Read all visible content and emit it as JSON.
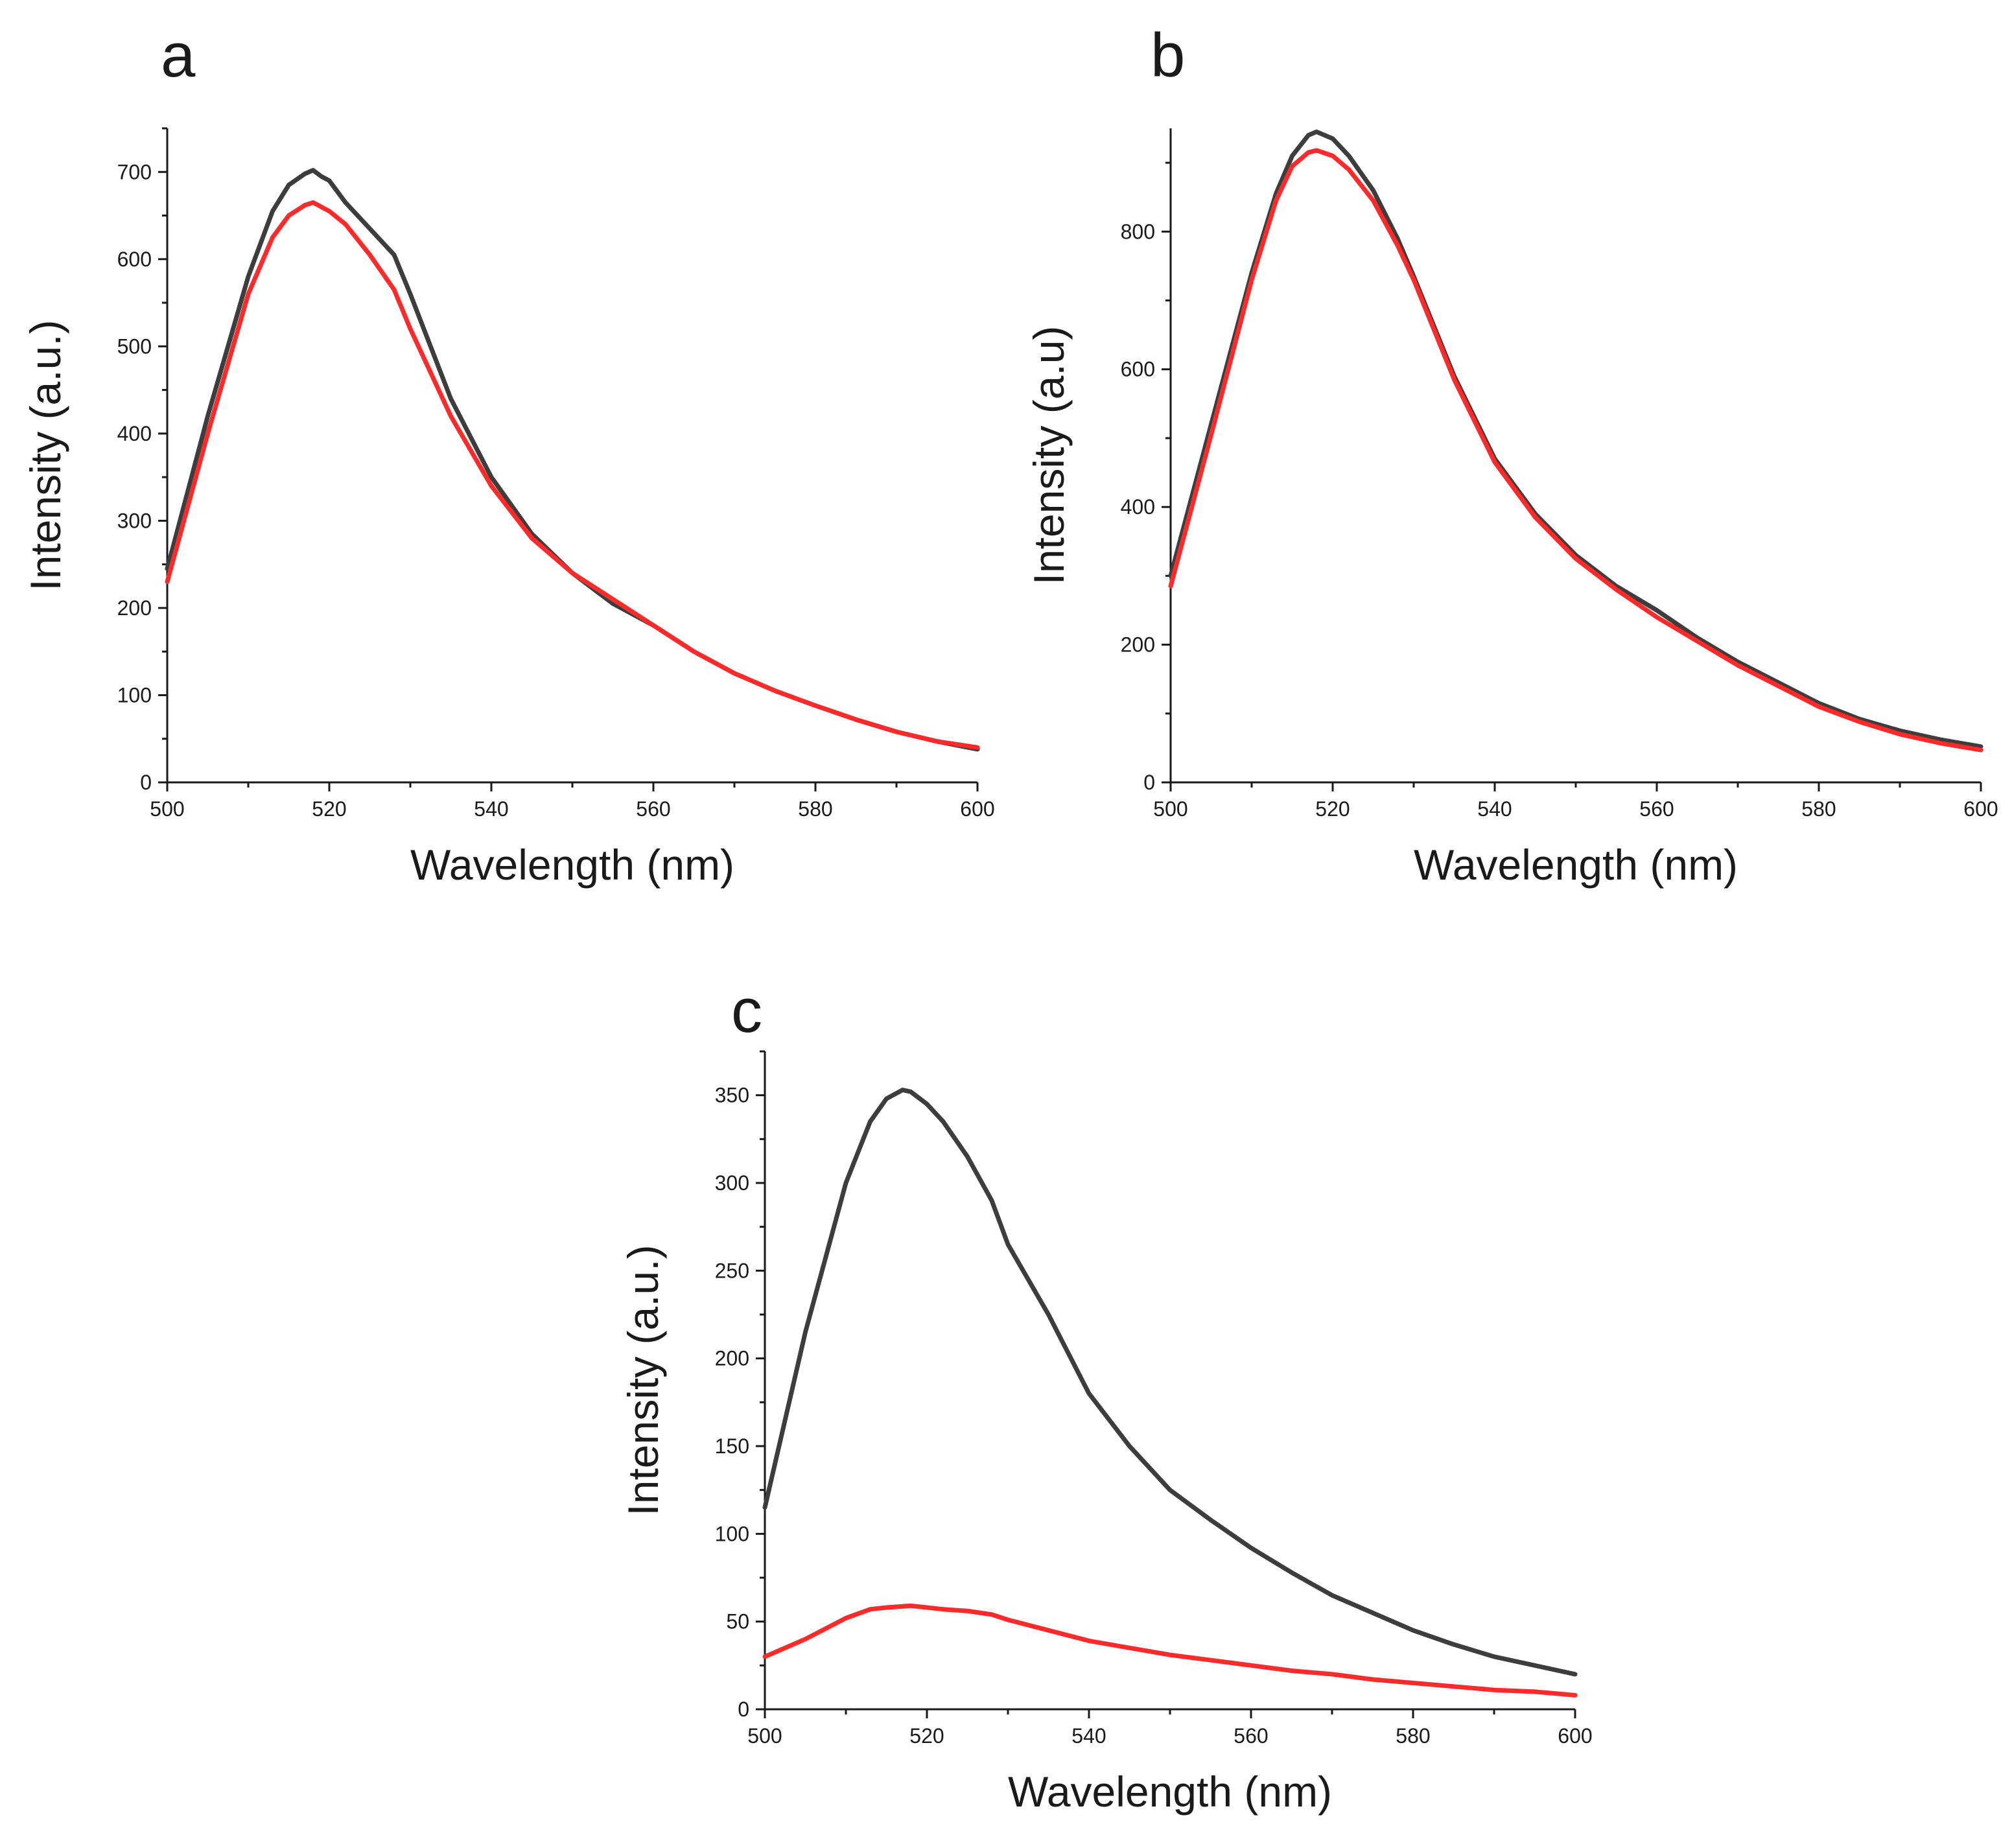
{
  "colors": {
    "series_dark": "#3d3d3d",
    "series_red": "#ff2a2a",
    "axis": "#1a1a1a"
  },
  "chart_data": [
    {
      "type": "line",
      "panel": "a",
      "xlabel": "Wavelength (nm)",
      "ylabel": "Intensity (a.u.)",
      "xlim": [
        500,
        600
      ],
      "ylim": [
        0,
        750
      ],
      "x_ticks": [
        500,
        520,
        540,
        560,
        580,
        600
      ],
      "x_tick_labels": [
        "500",
        "520",
        "540",
        "560",
        "580",
        "600"
      ],
      "y_ticks": [
        0,
        100,
        200,
        300,
        400,
        500,
        600,
        700
      ],
      "y_tick_labels": [
        "0",
        "100",
        "200",
        "300",
        "400",
        "500",
        "600",
        "700"
      ],
      "grid": false,
      "series": [
        {
          "name": "dark",
          "color": "#3d3d3d",
          "x": [
            500,
            505,
            510,
            513,
            515,
            517,
            518,
            519,
            520,
            522,
            525,
            528,
            530,
            535,
            540,
            545,
            550,
            555,
            560,
            565,
            570,
            575,
            580,
            585,
            590,
            595,
            600
          ],
          "y": [
            245,
            420,
            580,
            655,
            685,
            698,
            702,
            695,
            690,
            665,
            635,
            605,
            560,
            440,
            350,
            285,
            240,
            205,
            180,
            150,
            125,
            105,
            88,
            72,
            58,
            47,
            38
          ]
        },
        {
          "name": "red",
          "color": "#ff2a2a",
          "x": [
            500,
            505,
            510,
            513,
            515,
            517,
            518,
            520,
            522,
            525,
            528,
            530,
            535,
            540,
            545,
            550,
            555,
            560,
            565,
            570,
            575,
            580,
            585,
            590,
            595,
            600
          ],
          "y": [
            230,
            400,
            560,
            625,
            650,
            662,
            665,
            655,
            640,
            605,
            565,
            520,
            420,
            340,
            280,
            240,
            210,
            180,
            150,
            125,
            105,
            88,
            72,
            58,
            47,
            40
          ]
        }
      ]
    },
    {
      "type": "line",
      "panel": "b",
      "xlabel": "Wavelength (nm)",
      "ylabel": "Intensity (a.u)",
      "xlim": [
        500,
        600
      ],
      "ylim": [
        0,
        950
      ],
      "x_ticks": [
        500,
        520,
        540,
        560,
        580,
        600
      ],
      "x_tick_labels": [
        "500",
        "520",
        "540",
        "560",
        "580",
        "600"
      ],
      "y_ticks": [
        0,
        200,
        400,
        600,
        800
      ],
      "y_tick_labels": [
        "0",
        "200",
        "400",
        "600",
        "800"
      ],
      "grid": false,
      "series": [
        {
          "name": "dark",
          "color": "#3d3d3d",
          "x": [
            500,
            505,
            510,
            513,
            515,
            517,
            518,
            520,
            522,
            525,
            528,
            530,
            535,
            540,
            545,
            550,
            555,
            560,
            565,
            570,
            575,
            580,
            585,
            590,
            595,
            600
          ],
          "y": [
            300,
            520,
            740,
            855,
            910,
            940,
            945,
            935,
            910,
            860,
            790,
            735,
            590,
            470,
            390,
            330,
            285,
            250,
            210,
            175,
            145,
            115,
            92,
            75,
            62,
            52
          ]
        },
        {
          "name": "red",
          "color": "#ff2a2a",
          "x": [
            500,
            505,
            510,
            513,
            515,
            517,
            518,
            520,
            522,
            525,
            528,
            530,
            535,
            540,
            545,
            550,
            555,
            560,
            565,
            570,
            575,
            580,
            585,
            590,
            595,
            600
          ],
          "y": [
            285,
            505,
            730,
            845,
            895,
            915,
            918,
            910,
            890,
            845,
            780,
            730,
            585,
            465,
            385,
            325,
            280,
            240,
            205,
            170,
            140,
            110,
            88,
            70,
            57,
            47
          ]
        }
      ]
    },
    {
      "type": "line",
      "panel": "c",
      "xlabel": "Wavelength (nm)",
      "ylabel": "Intensity (a.u.)",
      "xlim": [
        500,
        600
      ],
      "ylim": [
        0,
        375
      ],
      "x_ticks": [
        500,
        520,
        540,
        560,
        580,
        600
      ],
      "x_tick_labels": [
        "500",
        "520",
        "540",
        "560",
        "580",
        "600"
      ],
      "y_ticks": [
        0,
        50,
        100,
        150,
        200,
        250,
        300,
        350
      ],
      "y_tick_labels": [
        "0",
        "50",
        "100",
        "150",
        "200",
        "250",
        "300",
        "350"
      ],
      "grid": false,
      "series": [
        {
          "name": "dark",
          "color": "#3d3d3d",
          "x": [
            500,
            505,
            510,
            513,
            515,
            517,
            518,
            520,
            522,
            525,
            528,
            530,
            535,
            540,
            545,
            550,
            555,
            560,
            565,
            570,
            575,
            580,
            585,
            590,
            595,
            600
          ],
          "y": [
            115,
            215,
            300,
            335,
            348,
            353,
            352,
            345,
            335,
            315,
            290,
            265,
            225,
            180,
            150,
            125,
            108,
            92,
            78,
            65,
            55,
            45,
            37,
            30,
            25,
            20
          ]
        },
        {
          "name": "red",
          "color": "#ff2a2a",
          "x": [
            500,
            505,
            510,
            513,
            515,
            518,
            520,
            522,
            525,
            528,
            530,
            535,
            540,
            545,
            550,
            555,
            560,
            565,
            570,
            575,
            580,
            585,
            590,
            595,
            600
          ],
          "y": [
            30,
            40,
            52,
            57,
            58,
            59,
            58,
            57,
            56,
            54,
            51,
            45,
            39,
            35,
            31,
            28,
            25,
            22,
            20,
            17,
            15,
            13,
            11,
            10,
            8
          ]
        }
      ]
    }
  ]
}
